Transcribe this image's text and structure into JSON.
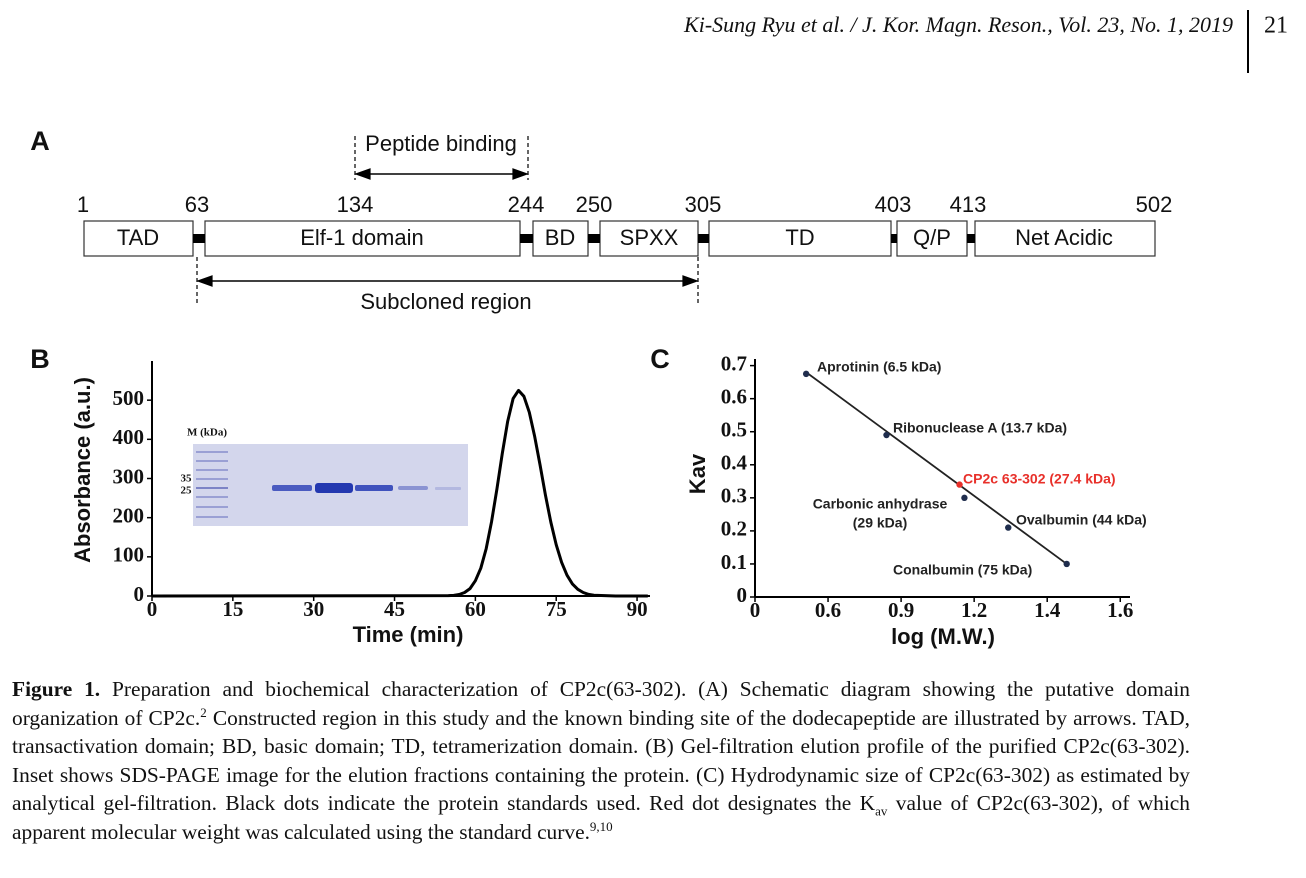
{
  "header": {
    "citation": "Ki-Sung Ryu et al. / J. Kor. Magn. Reson., Vol. 23, No. 1, 2019",
    "page": "21"
  },
  "panel_a": {
    "panel_label": "A",
    "peptide_label": "Peptide binding",
    "subcloned_label": "Subcloned region",
    "positions": [
      "1",
      "63",
      "134",
      "244",
      "250",
      "305",
      "403",
      "413",
      "502"
    ],
    "domains": [
      "TAD",
      "Elf-1 domain",
      "BD",
      "SPXX",
      "TD",
      "Q/P",
      "Net Acidic"
    ]
  },
  "chart_data": [
    {
      "type": "line",
      "panel_label": "B",
      "x_label": "Time (min)",
      "y_label": "Absorbance (a.u.)",
      "x": [
        0,
        55,
        56,
        57,
        58,
        59,
        60,
        61,
        62,
        63,
        64,
        65,
        66,
        67,
        68,
        69,
        70,
        71,
        72,
        73,
        74,
        75,
        76,
        77,
        78,
        79,
        80,
        81,
        82,
        84,
        86,
        92
      ],
      "values": [
        0,
        1,
        1.5,
        3.8,
        8.9,
        19,
        39,
        71,
        121,
        189,
        273,
        364,
        446,
        504,
        525,
        510,
        469,
        407,
        334,
        258,
        189,
        131,
        86,
        53,
        31,
        17,
        9,
        4,
        2,
        1,
        0,
        0
      ],
      "color": "#000000",
      "xlim": [
        0,
        92.4
      ],
      "xticks": [
        0,
        15,
        30,
        45,
        60,
        75,
        90
      ],
      "ylim": [
        0,
        600
      ],
      "yticks": [
        0,
        100,
        200,
        300,
        400,
        500
      ],
      "inset": {
        "marker_label": "M (kDa)",
        "marker_sizes": [
          "35",
          "25"
        ]
      }
    },
    {
      "type": "scatter",
      "panel_label": "C",
      "x_label": "log (M.W.)",
      "y_label": "Kav",
      "x": [
        0.81,
        1.14,
        1.44,
        1.46,
        1.64,
        1.88
      ],
      "values": [
        0.675,
        0.49,
        0.34,
        0.3,
        0.21,
        0.1
      ],
      "point_colors": [
        "#1f2d4d",
        "#1f2d4d",
        "#e8302a",
        "#1f2d4d",
        "#1f2d4d",
        "#1f2d4d"
      ],
      "point_labels": [
        [
          "Aprotinin (6.5 kDa)"
        ],
        [
          "Ribonuclease A (13.7 kDa)"
        ],
        [
          "CP2c 63-302 (27.4 kDa)"
        ],
        [
          "Carbonic anhydrase",
          "(29 kDa)"
        ],
        [
          "Ovalbumin (44 kDa)"
        ],
        [
          "Conalbumin (75 kDa)"
        ]
      ],
      "fit_line": {
        "x": [
          0.81,
          1.88
        ],
        "values": [
          0.68,
          0.1
        ],
        "color": "#222222"
      },
      "xlim": [
        0.6,
        2.14
      ],
      "xticks": [
        {
          "value": 0.6,
          "label": "0"
        },
        {
          "value": 0.9,
          "label": "0.6"
        },
        {
          "value": 1.2,
          "label": "0.9"
        },
        {
          "value": 1.5,
          "label": "1.2"
        },
        {
          "value": 1.8,
          "label": "1.4"
        },
        {
          "value": 2.1,
          "label": "1.6"
        }
      ],
      "ylim": [
        0,
        0.72
      ],
      "yticks": [
        0,
        0.1,
        0.2,
        0.3,
        0.4,
        0.5,
        0.6,
        0.7
      ]
    }
  ],
  "caption": {
    "label": "Figure 1.",
    "text_1": "Preparation and biochemical characterization of CP2c(63-302). (A) Schematic diagram showing the putative domain organization of CP2c.",
    "ref_1": "2",
    "text_2": "Constructed region in this study and the known binding site of the dodecapeptide are illustrated by arrows. TAD, transactivation domain; BD, basic domain; TD, tetramerization domain. (B) Gel-filtration elution profile of the purified CP2c(63-302). Inset shows SDS-PAGE image for the elution fractions containing the protein. (C) Hydrodynamic size of CP2c(63-302) as estimated by analytical gel-filtration. Black dots indicate the protein standards used. Red dot designates the K",
    "subscript": "av",
    "text_3": " value of CP2c(63-302), of which apparent molecular weight was calculated using the standard curve.",
    "ref_2": "9,10"
  }
}
